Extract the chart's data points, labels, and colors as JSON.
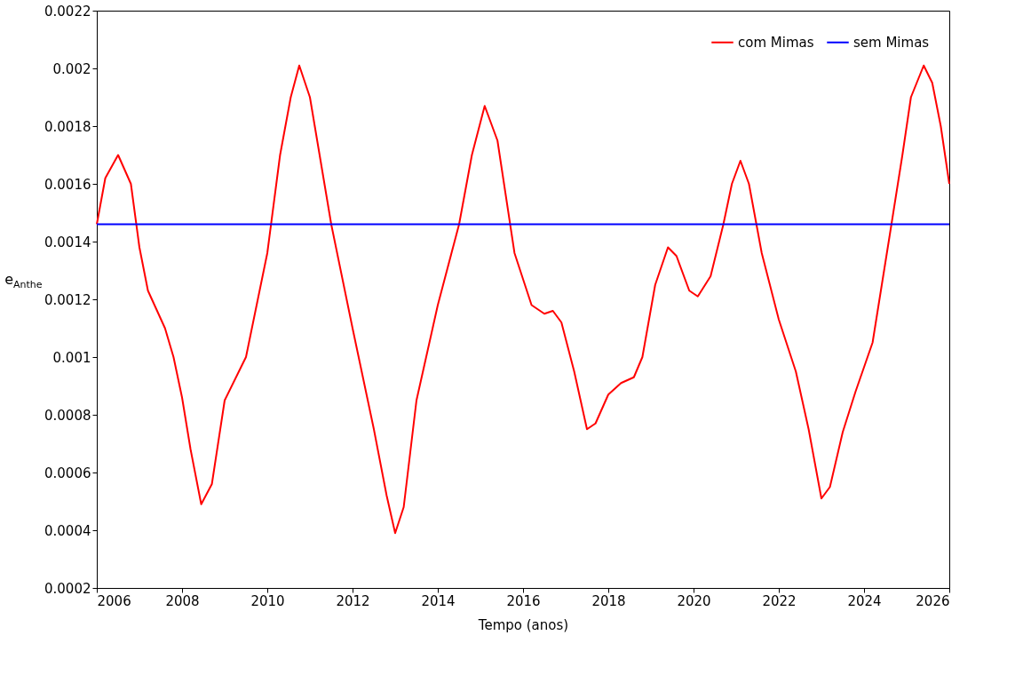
{
  "chart_data": {
    "type": "line",
    "xlabel": "Tempo (anos)",
    "ylabel": "e$_{Anthe}$",
    "xlim": [
      2006,
      2026
    ],
    "xticks": [
      2006,
      2008,
      2010,
      2012,
      2014,
      2016,
      2018,
      2020,
      2022,
      2024,
      2026
    ],
    "ylim": [
      0.0002,
      0.0022
    ],
    "yticks": [
      0.0002,
      0.0004,
      0.0006,
      0.0008,
      0.001,
      0.0012,
      0.0014,
      0.0016,
      0.0018,
      0.002,
      0.0022
    ],
    "grid": false,
    "legend": "top right",
    "line_style": "solid",
    "marker": "none",
    "series": [
      {
        "name": "com Mimas",
        "color": "#ff0000",
        "x": [
          2006.0,
          2006.2,
          2006.5,
          2006.8,
          2007.0,
          2007.2,
          2007.6,
          2007.8,
          2008.0,
          2008.2,
          2008.45,
          2008.7,
          2009.0,
          2009.5,
          2010.0,
          2010.3,
          2010.55,
          2010.75,
          2011.0,
          2011.5,
          2012.0,
          2012.5,
          2012.8,
          2013.0,
          2013.2,
          2013.5,
          2014.0,
          2014.5,
          2014.8,
          2015.1,
          2015.4,
          2015.8,
          2016.2,
          2016.5,
          2016.7,
          2016.9,
          2017.2,
          2017.5,
          2017.7,
          2018.0,
          2018.3,
          2018.6,
          2018.8,
          2019.1,
          2019.4,
          2019.6,
          2019.9,
          2020.1,
          2020.4,
          2020.7,
          2020.9,
          2021.1,
          2021.3,
          2021.6,
          2022.0,
          2022.4,
          2022.7,
          2023.0,
          2023.2,
          2023.5,
          2023.8,
          2024.2,
          2024.6,
          2024.9,
          2025.1,
          2025.4,
          2025.6,
          2025.8,
          2026.0
        ],
        "values": [
          0.00146,
          0.00162,
          0.0017,
          0.0016,
          0.00138,
          0.00123,
          0.0011,
          0.001,
          0.00086,
          0.00068,
          0.00049,
          0.00056,
          0.00085,
          0.001,
          0.00136,
          0.0017,
          0.0019,
          0.00201,
          0.0019,
          0.00146,
          0.0011,
          0.00075,
          0.00052,
          0.00039,
          0.00048,
          0.00085,
          0.00118,
          0.00146,
          0.0017,
          0.00187,
          0.00175,
          0.00136,
          0.00118,
          0.00115,
          0.00116,
          0.00112,
          0.00095,
          0.00075,
          0.00077,
          0.00087,
          0.00091,
          0.00093,
          0.001,
          0.00125,
          0.00138,
          0.00135,
          0.00123,
          0.00121,
          0.00128,
          0.00146,
          0.0016,
          0.00168,
          0.0016,
          0.00136,
          0.00113,
          0.00095,
          0.00075,
          0.00051,
          0.00055,
          0.00074,
          0.00088,
          0.00105,
          0.00142,
          0.0017,
          0.0019,
          0.00201,
          0.00195,
          0.0018,
          0.0016
        ]
      },
      {
        "name": "sem Mimas",
        "color": "#0000ff",
        "x": [
          2006.0,
          2026.0
        ],
        "values": [
          0.00146,
          0.00146
        ]
      }
    ]
  }
}
